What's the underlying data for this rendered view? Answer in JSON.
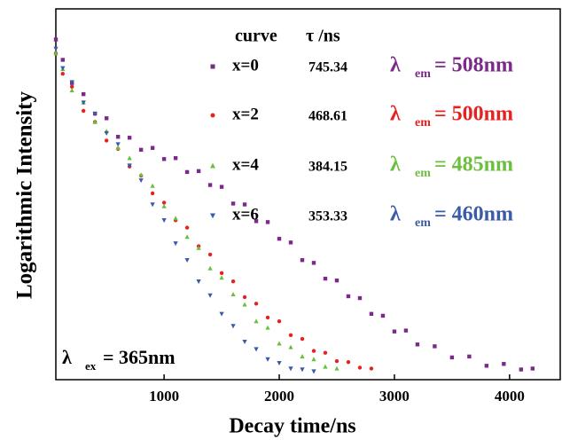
{
  "chart_data": {
    "type": "scatter",
    "xlabel": "Decay time/ns",
    "ylabel": "Logarithmic Intensity",
    "xlim": [
      60,
      4440
    ],
    "xticks": [
      1000,
      2000,
      3000,
      4000
    ],
    "ylim": [
      0,
      4
    ],
    "legend_header": {
      "name": "curve",
      "tau": "τ /ns"
    },
    "excitation": {
      "symbol": "λ",
      "sub": "ex",
      "text": "= 365nm"
    },
    "series": [
      {
        "name": "x=0",
        "tau": "745.34",
        "emission": {
          "symbol": "λ",
          "sub": "em",
          "text": "= 508nm"
        },
        "color": "#7b2a8a",
        "marker": "square",
        "x": [
          60,
          120,
          200,
          300,
          400,
          500,
          600,
          700,
          800,
          900,
          1000,
          1100,
          1200,
          1300,
          1400,
          1500,
          1600,
          1700,
          1800,
          1900,
          2000,
          2100,
          2200,
          2300,
          2400,
          2500,
          2600,
          2700,
          2800,
          2900,
          3000,
          3100,
          3200,
          3350,
          3500,
          3650,
          3800,
          3950,
          4100,
          4200
        ],
        "values": [
          3.67,
          3.45,
          3.2,
          3.08,
          2.87,
          2.82,
          2.62,
          2.61,
          2.48,
          2.5,
          2.38,
          2.39,
          2.24,
          2.25,
          2.1,
          2.08,
          1.9,
          1.89,
          1.71,
          1.7,
          1.52,
          1.48,
          1.29,
          1.26,
          1.09,
          1.07,
          0.9,
          0.88,
          0.71,
          0.69,
          0.52,
          0.53,
          0.38,
          0.36,
          0.24,
          0.25,
          0.15,
          0.17,
          0.11,
          0.12
        ]
      },
      {
        "name": "x=2",
        "tau": "468.61",
        "emission": {
          "symbol": "λ",
          "sub": "em",
          "text": "= 500nm"
        },
        "color": "#e8201e",
        "marker": "circle",
        "x": [
          60,
          120,
          200,
          300,
          400,
          500,
          600,
          700,
          800,
          900,
          1000,
          1100,
          1200,
          1300,
          1400,
          1500,
          1600,
          1700,
          1800,
          1900,
          2000,
          2100,
          2200,
          2300,
          2400,
          2500,
          2600,
          2700,
          2800
        ],
        "values": [
          3.52,
          3.3,
          3.16,
          2.9,
          2.78,
          2.58,
          2.49,
          2.3,
          2.2,
          2.01,
          1.91,
          1.72,
          1.64,
          1.44,
          1.35,
          1.15,
          1.06,
          0.89,
          0.82,
          0.67,
          0.63,
          0.48,
          0.44,
          0.31,
          0.29,
          0.2,
          0.19,
          0.13,
          0.12
        ]
      },
      {
        "name": "x=4",
        "tau": "384.15",
        "emission": {
          "symbol": "λ",
          "sub": "em",
          "text": "= 485nm"
        },
        "color": "#6cbf3c",
        "marker": "triangle-up",
        "x": [
          60,
          120,
          200,
          300,
          400,
          500,
          600,
          700,
          800,
          900,
          1000,
          1100,
          1200,
          1300,
          1400,
          1500,
          1600,
          1700,
          1800,
          1900,
          2000,
          2100,
          2200,
          2300,
          2400,
          2500
        ],
        "values": [
          3.52,
          3.35,
          3.12,
          2.99,
          2.78,
          2.68,
          2.5,
          2.39,
          2.21,
          2.09,
          1.87,
          1.74,
          1.54,
          1.42,
          1.2,
          1.1,
          0.92,
          0.81,
          0.63,
          0.56,
          0.39,
          0.35,
          0.25,
          0.22,
          0.14,
          0.12
        ]
      },
      {
        "name": "x=6",
        "tau": "353.33",
        "emission": {
          "symbol": "λ",
          "sub": "em",
          "text": "= 460nm"
        },
        "color": "#3a5ba8",
        "marker": "triangle-down",
        "x": [
          60,
          120,
          200,
          300,
          400,
          500,
          600,
          700,
          800,
          900,
          1000,
          1100,
          1200,
          1300,
          1400,
          1500,
          1600,
          1700,
          1800,
          1900,
          2000,
          2100,
          2200,
          2300
        ],
        "values": [
          3.57,
          3.36,
          3.21,
          2.99,
          2.87,
          2.66,
          2.54,
          2.31,
          2.15,
          1.89,
          1.72,
          1.47,
          1.29,
          1.06,
          0.91,
          0.71,
          0.58,
          0.41,
          0.33,
          0.22,
          0.18,
          0.12,
          0.11,
          0.09
        ]
      }
    ]
  }
}
